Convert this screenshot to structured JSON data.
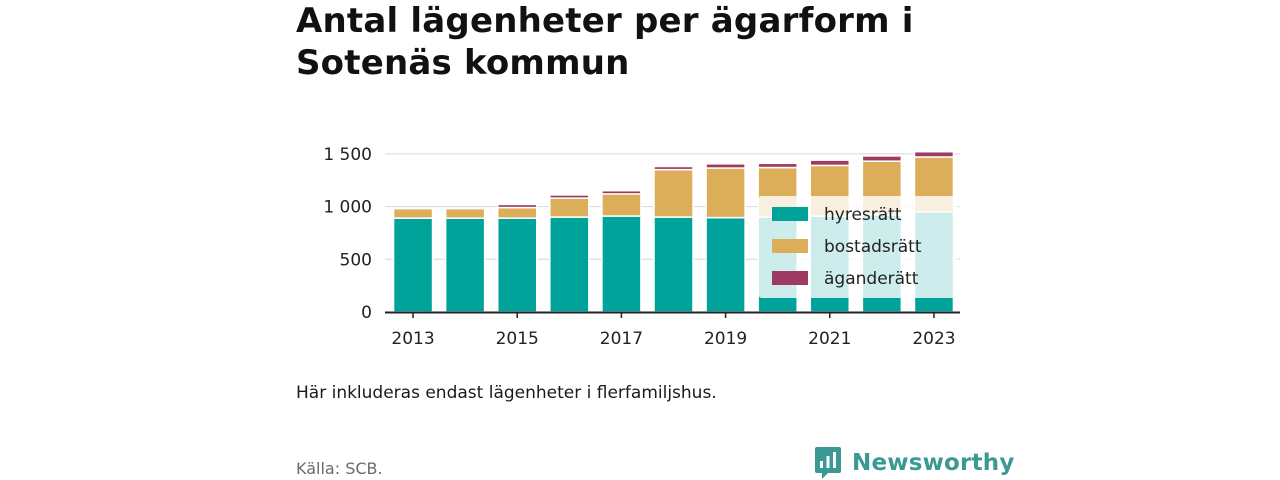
{
  "title": "Antal lägenheter per ägarform i Sotenäs kommun",
  "note": "Här inkluderas endast lägenheter i flerfamiljshus.",
  "source": "Källa: SCB.",
  "logo_text": "Newsworthy",
  "colors": {
    "hyresratt": "#00a39a",
    "bostadsratt": "#dcae5a",
    "aganderatt": "#9e3b62",
    "grid": "#dddddd",
    "axis": "#222222",
    "logo": "#3a9a93"
  },
  "chart_data": {
    "type": "bar",
    "stacked": true,
    "categories": [
      "2013",
      "2014",
      "2015",
      "2016",
      "2017",
      "2018",
      "2019",
      "2020",
      "2021",
      "2022",
      "2023"
    ],
    "x_tick_labels": [
      "2013",
      "2015",
      "2017",
      "2019",
      "2021",
      "2023"
    ],
    "ylim": [
      0,
      1650
    ],
    "y_ticks": [
      0,
      500,
      1000,
      1500
    ],
    "y_tick_labels": [
      "0",
      "500",
      "1 000",
      "1 500"
    ],
    "grid": true,
    "legend_position": "bottom-right",
    "series": [
      {
        "name": "hyresrätt",
        "color": "#00a39a",
        "values": [
          890,
          890,
          890,
          900,
          910,
          900,
          895,
          900,
          910,
          920,
          950
        ]
      },
      {
        "name": "bostadsrätt",
        "color": "#dcae5a",
        "values": [
          90,
          90,
          100,
          180,
          210,
          450,
          470,
          470,
          480,
          510,
          520
        ]
      },
      {
        "name": "äganderätt",
        "color": "#9e3b62",
        "values": [
          0,
          0,
          30,
          30,
          30,
          30,
          40,
          40,
          50,
          50,
          50
        ]
      }
    ]
  }
}
